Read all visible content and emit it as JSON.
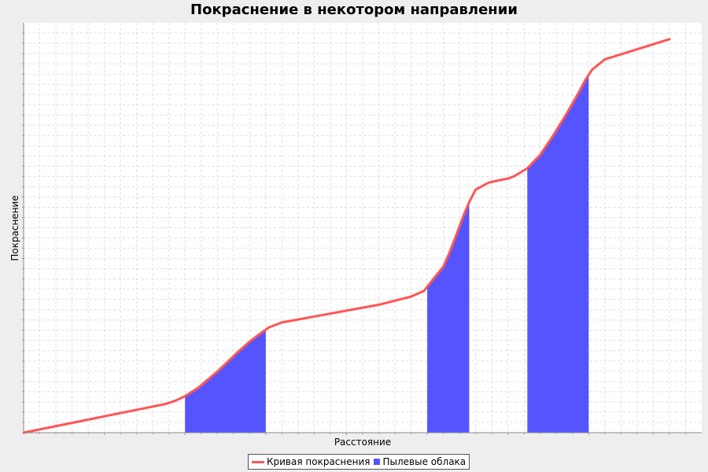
{
  "chart_data": {
    "type": "line",
    "title": "Покраснение в некотором направлении",
    "xlabel": "Расстояние",
    "ylabel": "Покраснение",
    "xlim": [
      0,
      105
    ],
    "ylim": [
      0,
      100
    ],
    "grid": true,
    "tick_labels_shown": false,
    "legend_position": "bottom",
    "series": [
      {
        "name": "Кривая покраснения",
        "type": "line",
        "color": "#ff5555",
        "x": [
          0,
          22,
          23.5,
          25,
          27,
          30,
          33,
          35,
          36.5,
          38,
          40,
          55,
          60,
          62,
          63,
          65,
          66,
          67,
          68,
          69,
          70,
          72,
          74,
          75,
          76,
          78,
          80,
          82,
          84,
          86,
          87,
          88,
          90,
          100
        ],
        "y": [
          0,
          7,
          7.8,
          8.9,
          10.9,
          14.9,
          19.4,
          22.2,
          24,
          25.7,
          26.9,
          31.2,
          33.2,
          34.6,
          36.6,
          40.5,
          44.1,
          48.2,
          52.5,
          56.3,
          59.3,
          61,
          61.7,
          62,
          62.6,
          64.5,
          67.8,
          72.5,
          77.6,
          83.1,
          86.1,
          88.5,
          91.1,
          96
        ]
      },
      {
        "name": "Пылевые облака",
        "type": "area",
        "color": "#5555ff",
        "regions": [
          [
            25,
            37.5
          ],
          [
            62.5,
            69
          ],
          [
            78,
            87.5
          ]
        ]
      }
    ]
  }
}
